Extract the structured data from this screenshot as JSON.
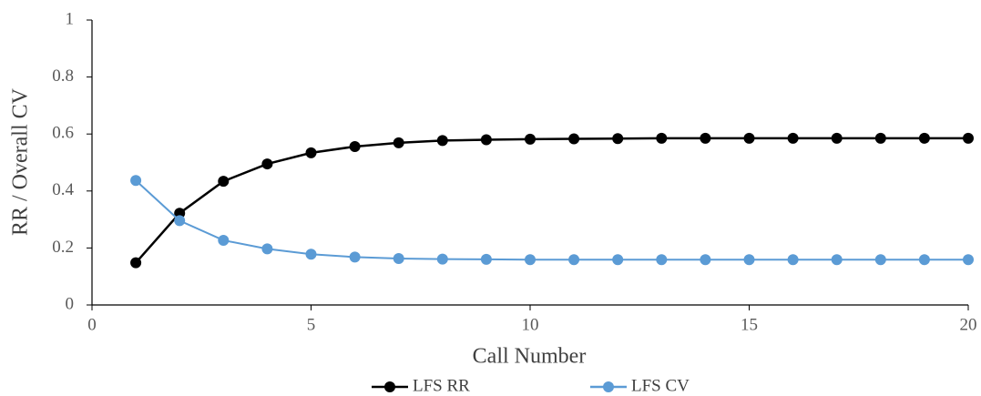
{
  "chart_data": {
    "type": "line",
    "x_label": "Call Number",
    "y_label": "RR / Overall CV",
    "x": [
      1,
      2,
      3,
      4,
      5,
      6,
      7,
      8,
      9,
      10,
      11,
      12,
      13,
      14,
      15,
      16,
      17,
      18,
      19,
      20
    ],
    "series": [
      {
        "name": "LFS RR",
        "color": "#000000",
        "values": [
          0.148,
          0.322,
          0.434,
          0.495,
          0.534,
          0.556,
          0.569,
          0.577,
          0.58,
          0.582,
          0.583,
          0.584,
          0.585,
          0.585,
          0.585,
          0.585,
          0.585,
          0.585,
          0.585,
          0.585
        ]
      },
      {
        "name": "LFS CV",
        "color": "#5b9bd5",
        "values": [
          0.437,
          0.296,
          0.227,
          0.197,
          0.178,
          0.168,
          0.163,
          0.161,
          0.16,
          0.159,
          0.159,
          0.159,
          0.159,
          0.159,
          0.159,
          0.159,
          0.159,
          0.159,
          0.159,
          0.159
        ]
      }
    ],
    "xlim": [
      0,
      20
    ],
    "xticks": [
      0,
      5,
      10,
      15,
      20
    ],
    "ylim": [
      0,
      1
    ],
    "yticks": [
      0,
      0.2,
      0.4,
      0.6,
      0.8,
      1
    ],
    "legend": "bottom",
    "grid": false
  }
}
